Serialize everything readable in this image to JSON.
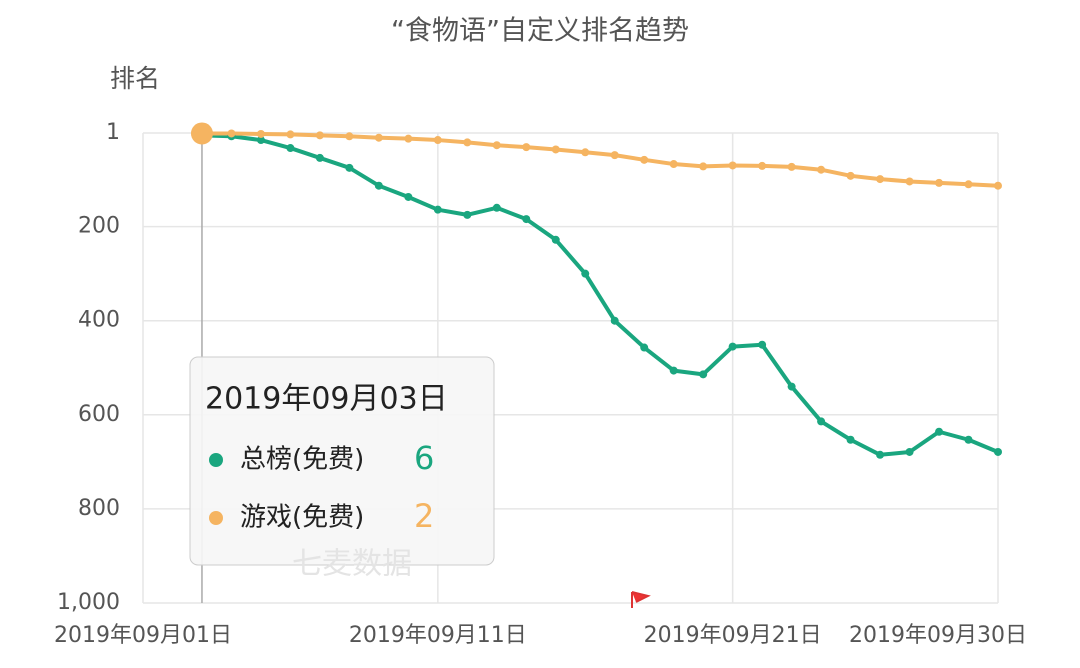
{
  "chart_data": {
    "type": "line",
    "title": "“食物语”自定义排名趋势",
    "y_label": "排名",
    "y_inverted": true,
    "x": [
      "2019-09-03",
      "2019-09-04",
      "2019-09-05",
      "2019-09-06",
      "2019-09-07",
      "2019-09-08",
      "2019-09-09",
      "2019-09-10",
      "2019-09-11",
      "2019-09-12",
      "2019-09-13",
      "2019-09-14",
      "2019-09-15",
      "2019-09-16",
      "2019-09-17",
      "2019-09-18",
      "2019-09-19",
      "2019-09-20",
      "2019-09-21",
      "2019-09-22",
      "2019-09-23",
      "2019-09-24",
      "2019-09-25",
      "2019-09-26",
      "2019-09-27",
      "2019-09-28",
      "2019-09-29",
      "2019-09-30"
    ],
    "xlim": [
      "2019-09-01",
      "2019-09-30"
    ],
    "xticks": [
      {
        "value": "2019-09-01",
        "label": "2019年09月01日"
      },
      {
        "value": "2019-09-11",
        "label": "2019年09月11日"
      },
      {
        "value": "2019-09-21",
        "label": "2019年09月21日"
      },
      {
        "value": "2019-09-30",
        "label": "2019年09月30日"
      }
    ],
    "ylim": [
      1,
      1000
    ],
    "yticks": [
      1,
      200,
      400,
      600,
      800,
      {
        "value": 1000,
        "label": "1,000"
      }
    ],
    "grid": true,
    "series": [
      {
        "name": "总榜(免费)",
        "color": "#1aa67f",
        "values": [
          6,
          8,
          16,
          33,
          54,
          75,
          113,
          137,
          164,
          175,
          160,
          184,
          228,
          300,
          400,
          457,
          506,
          514,
          455,
          451,
          540,
          614,
          653,
          685,
          679,
          636,
          653,
          679
        ]
      },
      {
        "name": "游戏(免费)",
        "color": "#f5b461",
        "values": [
          2,
          2,
          3,
          4,
          6,
          8,
          11,
          13,
          16,
          21,
          27,
          31,
          36,
          42,
          48,
          58,
          67,
          72,
          70,
          71,
          73,
          79,
          92,
          99,
          104,
          107,
          110,
          113
        ]
      }
    ],
    "tooltip": {
      "title": "2019年09月03日"
    },
    "watermark": "七麦数据"
  }
}
